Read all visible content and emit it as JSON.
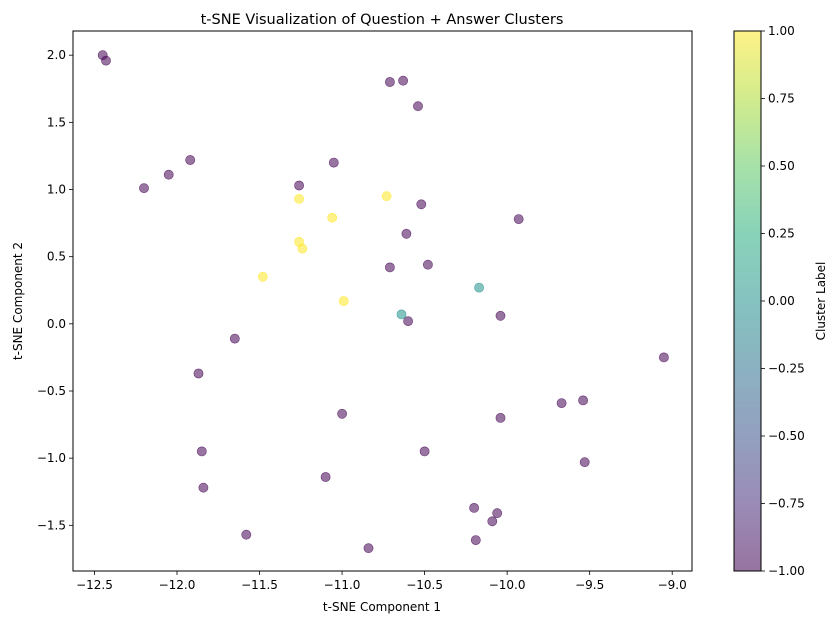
{
  "chart_data": {
    "type": "scatter",
    "title": "t-SNE Visualization of Question + Answer Clusters",
    "xlabel": "t-SNE Component 1",
    "ylabel": "t-SNE Component 2",
    "xlim": [
      -12.63,
      -8.88
    ],
    "ylim": [
      -1.84,
      2.18
    ],
    "xticks": [
      -12.5,
      -12.0,
      -11.5,
      -11.0,
      -10.5,
      -10.0,
      -9.5,
      -9.0
    ],
    "xtick_labels": [
      "−12.5",
      "−12.0",
      "−11.5",
      "−11.0",
      "−10.5",
      "−10.0",
      "−9.5",
      "−9.0"
    ],
    "yticks": [
      -1.5,
      -1.0,
      -0.5,
      0.0,
      0.5,
      1.0,
      1.5,
      2.0
    ],
    "ytick_labels": [
      "−1.5",
      "−1.0",
      "−0.5",
      "0.0",
      "0.5",
      "1.0",
      "1.5",
      "2.0"
    ],
    "grid": false,
    "colorbar": {
      "label": "Cluster Label",
      "range": [
        -1.0,
        1.0
      ],
      "ticks": [
        -1.0,
        -0.75,
        -0.5,
        -0.25,
        0.0,
        0.25,
        0.5,
        0.75,
        1.0
      ],
      "tick_labels": [
        "−1.00",
        "−0.75",
        "−0.50",
        "−0.25",
        "0.00",
        "0.25",
        "0.50",
        "0.75",
        "1.00"
      ],
      "colormap": "viridis"
    },
    "colors": {
      "-1": "#440154",
      "0": "#21918c",
      "1": "#fde725"
    },
    "points": [
      {
        "x": -12.45,
        "y": 2.0,
        "label": -1
      },
      {
        "x": -12.43,
        "y": 1.96,
        "label": -1
      },
      {
        "x": -12.2,
        "y": 1.01,
        "label": -1
      },
      {
        "x": -12.05,
        "y": 1.11,
        "label": -1
      },
      {
        "x": -11.92,
        "y": 1.22,
        "label": -1
      },
      {
        "x": -11.87,
        "y": -0.37,
        "label": -1
      },
      {
        "x": -11.85,
        "y": -0.95,
        "label": -1
      },
      {
        "x": -11.84,
        "y": -1.22,
        "label": -1
      },
      {
        "x": -11.65,
        "y": -0.11,
        "label": -1
      },
      {
        "x": -11.58,
        "y": -1.57,
        "label": -1
      },
      {
        "x": -11.26,
        "y": 1.03,
        "label": -1
      },
      {
        "x": -11.1,
        "y": -1.14,
        "label": -1
      },
      {
        "x": -11.05,
        "y": 1.2,
        "label": -1
      },
      {
        "x": -11.0,
        "y": -0.67,
        "label": -1
      },
      {
        "x": -10.84,
        "y": -1.67,
        "label": -1
      },
      {
        "x": -10.71,
        "y": 1.8,
        "label": -1
      },
      {
        "x": -10.63,
        "y": 1.81,
        "label": -1
      },
      {
        "x": -10.71,
        "y": 0.42,
        "label": -1
      },
      {
        "x": -10.61,
        "y": 0.67,
        "label": -1
      },
      {
        "x": -10.6,
        "y": 0.02,
        "label": -1
      },
      {
        "x": -10.54,
        "y": 1.62,
        "label": -1
      },
      {
        "x": -10.52,
        "y": 0.89,
        "label": -1
      },
      {
        "x": -10.5,
        "y": -0.95,
        "label": -1
      },
      {
        "x": -10.48,
        "y": 0.44,
        "label": -1
      },
      {
        "x": -10.2,
        "y": -1.37,
        "label": -1
      },
      {
        "x": -10.19,
        "y": -1.61,
        "label": -1
      },
      {
        "x": -10.09,
        "y": -1.47,
        "label": -1
      },
      {
        "x": -10.06,
        "y": -1.41,
        "label": -1
      },
      {
        "x": -10.04,
        "y": 0.06,
        "label": -1
      },
      {
        "x": -10.04,
        "y": -0.7,
        "label": -1
      },
      {
        "x": -9.93,
        "y": 0.78,
        "label": -1
      },
      {
        "x": -9.67,
        "y": -0.59,
        "label": -1
      },
      {
        "x": -9.54,
        "y": -0.57,
        "label": -1
      },
      {
        "x": -9.53,
        "y": -1.03,
        "label": -1
      },
      {
        "x": -9.05,
        "y": -0.25,
        "label": -1
      },
      {
        "x": -10.64,
        "y": 0.07,
        "label": 0
      },
      {
        "x": -10.17,
        "y": 0.27,
        "label": 0
      },
      {
        "x": -11.26,
        "y": 0.93,
        "label": 1
      },
      {
        "x": -11.26,
        "y": 0.61,
        "label": 1
      },
      {
        "x": -11.24,
        "y": 0.56,
        "label": 1
      },
      {
        "x": -11.06,
        "y": 0.79,
        "label": 1
      },
      {
        "x": -10.99,
        "y": 0.17,
        "label": 1
      },
      {
        "x": -10.73,
        "y": 0.95,
        "label": 1
      },
      {
        "x": -11.48,
        "y": 0.35,
        "label": 1
      }
    ]
  }
}
